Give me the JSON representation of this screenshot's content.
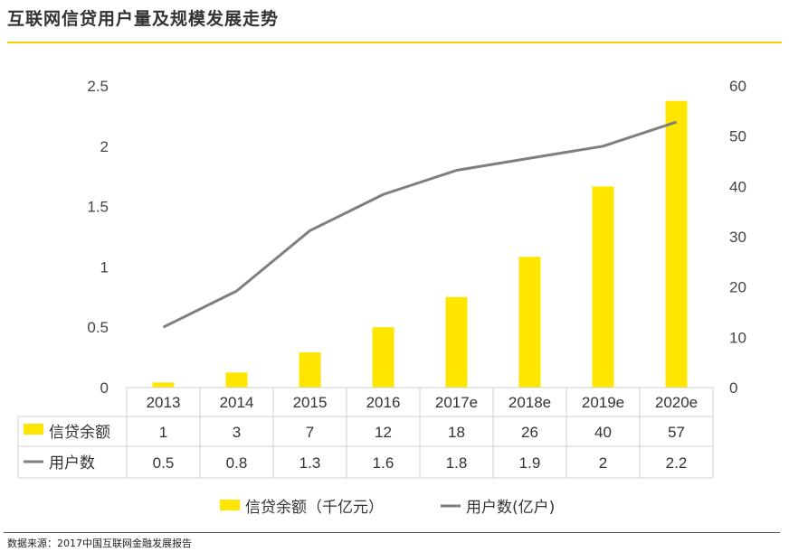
{
  "page": {
    "title": "互联网信贷用户量及规模发展走势",
    "source": "数据来源：2017中国互联网金融发展报告"
  },
  "chart_data": {
    "type": "bar",
    "title": "",
    "categories": [
      "2013",
      "2014",
      "2015",
      "2016",
      "2017e",
      "2018e",
      "2019e",
      "2020e"
    ],
    "series": [
      {
        "name": "信贷余额",
        "legend_name": "信贷余额（千亿元）",
        "kind": "bar",
        "axis": "right",
        "color": "#ffe600",
        "values": [
          1,
          3,
          7,
          12,
          18,
          26,
          40,
          57
        ]
      },
      {
        "name": "用户数",
        "legend_name": "用户数(亿户)",
        "kind": "line",
        "axis": "left",
        "color": "#7f7f7f",
        "values": [
          0.5,
          0.8,
          1.3,
          1.6,
          1.8,
          1.9,
          2,
          2.2
        ]
      }
    ],
    "y_left": {
      "ticks": [
        "0",
        "0.5",
        "1",
        "1.5",
        "2",
        "2.5"
      ],
      "ylim": [
        0,
        2.5
      ]
    },
    "y_right": {
      "ticks": [
        "0",
        "10",
        "20",
        "30",
        "40",
        "50",
        "60"
      ],
      "ylim": [
        0,
        60
      ]
    },
    "grid": false,
    "legend_position": "bottom",
    "data_table": true
  }
}
